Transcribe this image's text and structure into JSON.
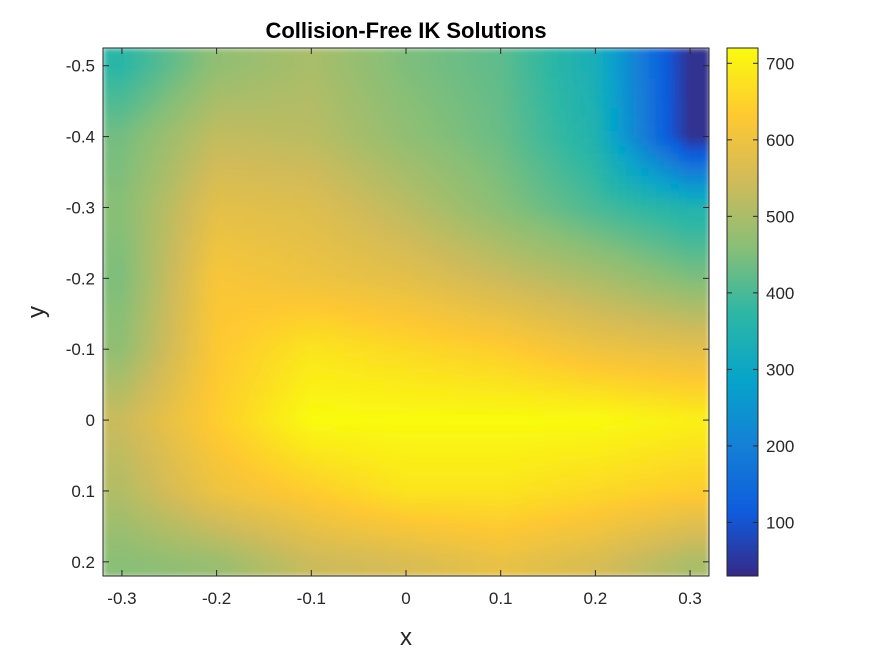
{
  "chart_data": {
    "type": "heatmap",
    "title": "Collision-Free IK Solutions",
    "xlabel": "x",
    "ylabel": "y",
    "xlim": [
      -0.32,
      0.32
    ],
    "ylim": [
      -0.525,
      0.22
    ],
    "y_reversed": true,
    "x_ticks": [
      -0.3,
      -0.2,
      -0.1,
      0,
      0.1,
      0.2,
      0.3
    ],
    "x_tick_labels": [
      "-0.3",
      "-0.2",
      "-0.1",
      "0",
      "0.1",
      "0.2",
      "0.3"
    ],
    "y_ticks": [
      -0.5,
      -0.4,
      -0.3,
      -0.2,
      -0.1,
      0,
      0.1,
      0.2
    ],
    "y_tick_labels": [
      "-0.5",
      "-0.4",
      "-0.3",
      "-0.2",
      "-0.1",
      "0",
      "0.1",
      "0.2"
    ],
    "colorbar": {
      "colormap": "parula",
      "range": [
        30,
        720
      ],
      "ticks": [
        100,
        200,
        300,
        400,
        500,
        600,
        700
      ],
      "tick_labels": [
        "100",
        "200",
        "300",
        "400",
        "500",
        "600",
        "700"
      ]
    },
    "grid": false,
    "grid_x": [
      -0.3,
      -0.2,
      -0.1,
      0,
      0.1,
      0.2,
      0.3
    ],
    "grid_y": [
      -0.5,
      -0.4,
      -0.3,
      -0.2,
      -0.1,
      0,
      0.1,
      0.2
    ],
    "z": [
      [
        370,
        470,
        500,
        450,
        420,
        330,
        40
      ],
      [
        440,
        530,
        520,
        470,
        430,
        350,
        40
      ],
      [
        460,
        580,
        570,
        520,
        460,
        400,
        350
      ],
      [
        450,
        620,
        600,
        580,
        540,
        500,
        450
      ],
      [
        470,
        630,
        680,
        660,
        640,
        600,
        580
      ],
      [
        540,
        640,
        720,
        720,
        720,
        720,
        700
      ],
      [
        510,
        600,
        640,
        680,
        680,
        660,
        640
      ],
      [
        460,
        480,
        540,
        560,
        590,
        560,
        500
      ]
    ]
  }
}
